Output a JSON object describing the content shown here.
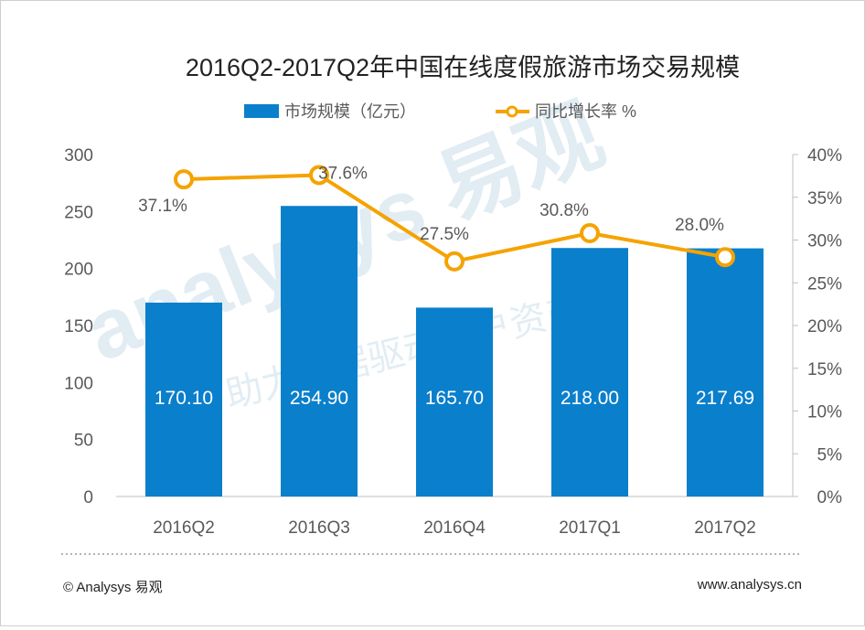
{
  "chart_data": {
    "type": "bar",
    "title": "2016Q2-2017Q2年中国在线度假旅游市场交易规模",
    "categories": [
      "2016Q2",
      "2016Q3",
      "2016Q4",
      "2017Q1",
      "2017Q2"
    ],
    "series": [
      {
        "name": "市场规模（亿元）",
        "type": "bar",
        "axis": "left",
        "values": [
          170.1,
          254.9,
          165.7,
          218.0,
          217.69
        ],
        "labels": [
          "170.10",
          "254.90",
          "165.70",
          "218.00",
          "217.69"
        ]
      },
      {
        "name": "同比增长率 %",
        "type": "line",
        "axis": "right",
        "values": [
          37.1,
          37.6,
          27.5,
          30.8,
          28.0
        ],
        "labels": [
          "37.1%",
          "37.6%",
          "27.5%",
          "30.8%",
          "28.0%"
        ]
      }
    ],
    "ylim_left": [
      0,
      300
    ],
    "ylim_right": [
      0,
      40
    ],
    "yticks_left": [
      "0",
      "50",
      "100",
      "150",
      "200",
      "250",
      "300"
    ],
    "yticks_right": [
      "0%",
      "5%",
      "10%",
      "15%",
      "20%",
      "25%",
      "30%",
      "35%",
      "40%"
    ],
    "legend_position": "top-center",
    "grid": false
  },
  "colors": {
    "bar": "#0a7fcc",
    "line": "#f5a300",
    "axis_text": "#595959",
    "watermark": "#d7e6ef"
  },
  "watermark": {
    "brand": "analysys 易观",
    "slogan": "助力数据驱动用户资产"
  },
  "footer": {
    "copyright": "© Analysys 易观",
    "website": "www.analysys.cn"
  }
}
